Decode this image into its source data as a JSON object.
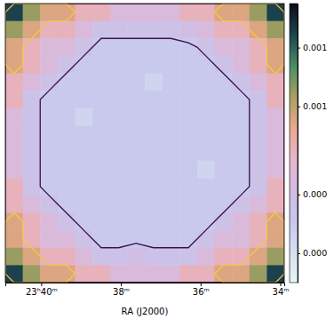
{
  "chart_data": {
    "type": "heatmap",
    "x_label": "RA (J2000)",
    "xlim": [
      40.9,
      33.9
    ],
    "xticks": [
      {
        "value": 40,
        "label": "23ʰ40ᵐ"
      },
      {
        "value": 38,
        "label": "38ᵐ"
      },
      {
        "value": 36,
        "label": "36ᵐ"
      },
      {
        "value": 34,
        "label": "34ᵐ"
      }
    ],
    "tick_labels": "x",
    "z": [
      [
        0.0015,
        0.0011,
        0.0009,
        0.0009,
        0.0007,
        0.0007,
        0.0005,
        0.0005,
        0.0005,
        0.0005,
        0.0007,
        0.0007,
        0.0009,
        0.0009,
        0.0011,
        0.0015
      ],
      [
        0.0011,
        0.0009,
        0.0007,
        0.0007,
        0.0005,
        0.0003,
        0.0003,
        0.0003,
        0.0003,
        0.0003,
        0.0004,
        0.0005,
        0.0007,
        0.0007,
        0.0009,
        0.0011
      ],
      [
        0.0009,
        0.0007,
        0.0005,
        0.0005,
        0.0003,
        0.0002,
        0.0002,
        0.0002,
        0.0002,
        0.0002,
        0.0002,
        0.0003,
        0.0005,
        0.0005,
        0.0007,
        0.0009
      ],
      [
        0.0009,
        0.0007,
        0.0005,
        0.0003,
        0.0002,
        0.0002,
        0.0002,
        0.0002,
        0.0002,
        0.0002,
        0.0002,
        0.0002,
        0.0003,
        0.0005,
        0.0007,
        0.0009
      ],
      [
        0.0007,
        0.0005,
        0.0003,
        0.0002,
        0.0002,
        0.0002,
        0.0002,
        0.0002,
        0.0001,
        0.0002,
        0.0002,
        0.0002,
        0.0002,
        0.0003,
        0.0005,
        0.0007
      ],
      [
        0.0007,
        0.0003,
        0.0002,
        0.0002,
        0.0002,
        0.0002,
        0.0002,
        0.0002,
        0.0002,
        0.0002,
        0.0002,
        0.0002,
        0.0002,
        0.0002,
        0.0003,
        0.0007
      ],
      [
        0.0005,
        0.0003,
        0.0002,
        0.0002,
        0.0001,
        0.0002,
        0.0002,
        0.0002,
        0.0002,
        0.0002,
        0.0002,
        0.0002,
        0.0002,
        0.0002,
        0.0003,
        0.0005
      ],
      [
        0.0005,
        0.0003,
        0.0002,
        0.0002,
        0.0002,
        0.0002,
        0.0002,
        0.0002,
        0.0002,
        0.0002,
        0.0002,
        0.0002,
        0.0002,
        0.0002,
        0.0003,
        0.0005
      ],
      [
        0.0005,
        0.0003,
        0.0002,
        0.0002,
        0.0002,
        0.0002,
        0.0002,
        0.0002,
        0.0002,
        0.0002,
        0.0002,
        0.0002,
        0.0002,
        0.0002,
        0.0003,
        0.0005
      ],
      [
        0.0005,
        0.0003,
        0.0002,
        0.0002,
        0.0002,
        0.0002,
        0.0002,
        0.0002,
        0.0002,
        0.0002,
        0.0002,
        0.0001,
        0.0002,
        0.0002,
        0.0003,
        0.0005
      ],
      [
        0.0007,
        0.0003,
        0.0002,
        0.0002,
        0.0002,
        0.0002,
        0.0002,
        0.0002,
        0.0002,
        0.0002,
        0.0002,
        0.0002,
        0.0002,
        0.0002,
        0.0003,
        0.0007
      ],
      [
        0.0007,
        0.0005,
        0.0003,
        0.0002,
        0.0002,
        0.0002,
        0.0002,
        0.0002,
        0.0002,
        0.0002,
        0.0002,
        0.0002,
        0.0002,
        0.0003,
        0.0005,
        0.0007
      ],
      [
        0.0009,
        0.0007,
        0.0005,
        0.0003,
        0.0002,
        0.0002,
        0.0002,
        0.0002,
        0.0002,
        0.0002,
        0.0002,
        0.0002,
        0.0003,
        0.0005,
        0.0007,
        0.0009
      ],
      [
        0.0009,
        0.0007,
        0.0005,
        0.0005,
        0.0003,
        0.0002,
        0.0002,
        0.0002,
        0.0002,
        0.0002,
        0.0002,
        0.0003,
        0.0005,
        0.0005,
        0.0007,
        0.0009
      ],
      [
        0.0011,
        0.0009,
        0.0007,
        0.0007,
        0.0005,
        0.0003,
        0.0003,
        0.0004,
        0.0003,
        0.0003,
        0.0003,
        0.0005,
        0.0007,
        0.0007,
        0.0009,
        0.0011
      ],
      [
        0.0015,
        0.0011,
        0.0009,
        0.0009,
        0.0007,
        0.0007,
        0.0005,
        0.0005,
        0.0005,
        0.0005,
        0.0007,
        0.0007,
        0.0009,
        0.0009,
        0.0011,
        0.0015
      ]
    ],
    "colorbar": {
      "range": [
        -0.0002,
        0.0017
      ],
      "ticks": [
        {
          "value": 0.0014,
          "label": "0.001"
        },
        {
          "value": 0.001,
          "label": "0.001"
        },
        {
          "value": 0.0004,
          "label": "0.000"
        },
        {
          "value": 0,
          "label": "0.000"
        }
      ]
    },
    "contours": [
      {
        "level": 0.00025,
        "color": "#3b0f50"
      },
      {
        "level": 0.0008,
        "color": "#f5c842"
      }
    ]
  }
}
